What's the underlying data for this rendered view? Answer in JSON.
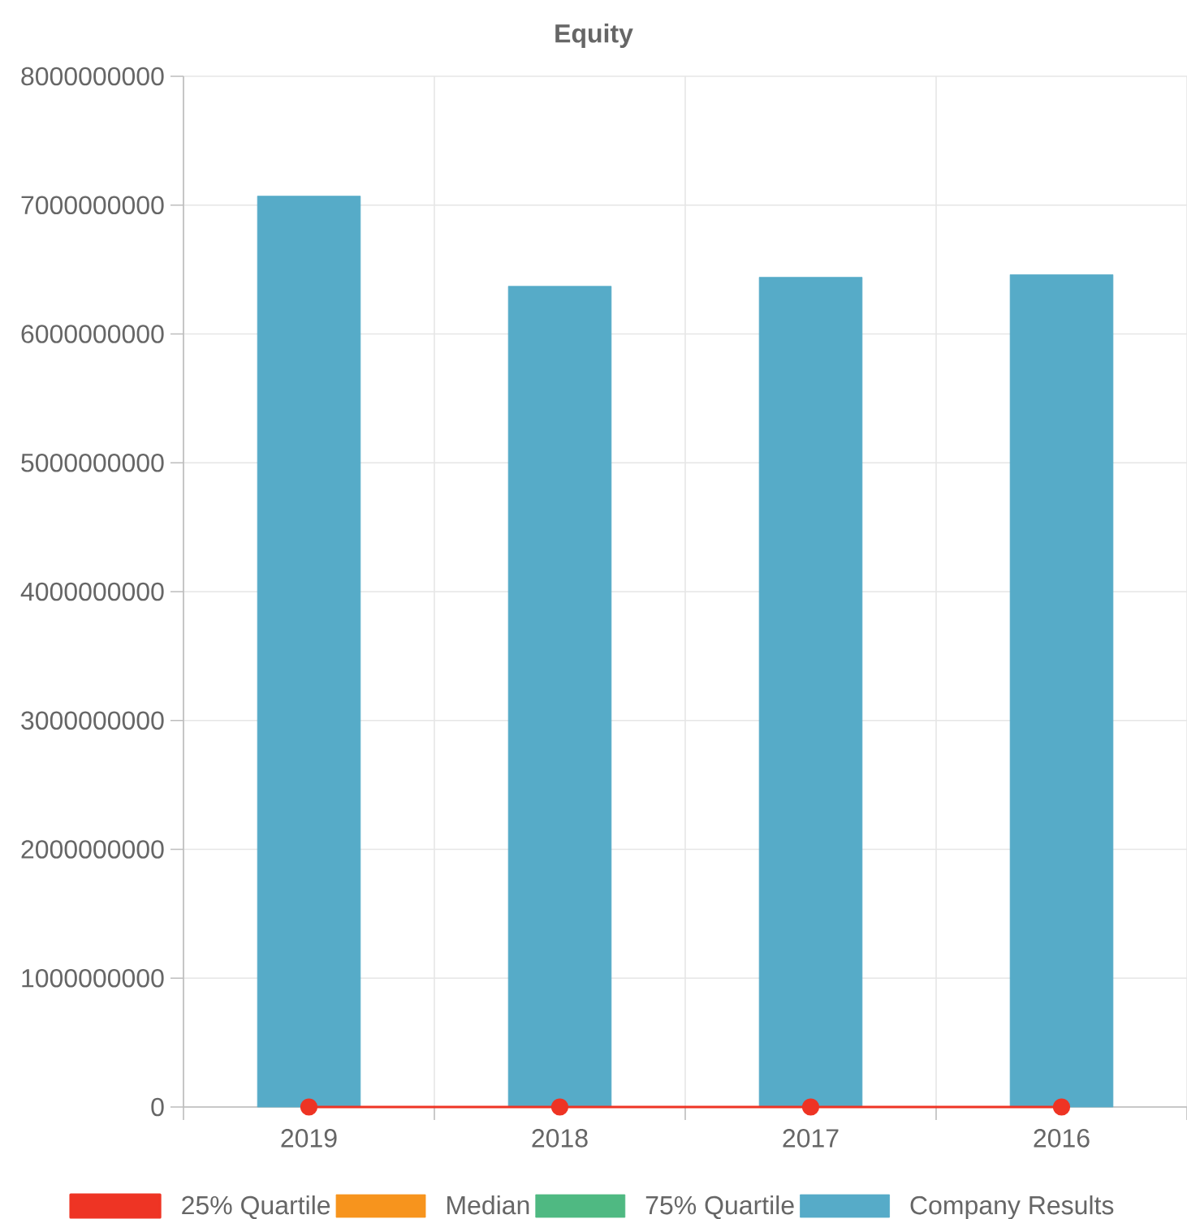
{
  "chart_data": {
    "type": "bar",
    "title": "Equity",
    "categories": [
      "2019",
      "2018",
      "2017",
      "2016"
    ],
    "series": [
      {
        "name": "25% Quartile",
        "type": "line",
        "color": "#ee3424",
        "values": [
          0,
          0,
          0,
          0
        ]
      },
      {
        "name": "Median",
        "type": "line",
        "color": "#f7941d",
        "values": [
          null,
          null,
          null,
          null
        ]
      },
      {
        "name": "75% Quartile",
        "type": "line",
        "color": "#4fb982",
        "values": [
          null,
          null,
          null,
          null
        ]
      },
      {
        "name": "Company Results",
        "color": "#56abc8",
        "values": [
          7070000000,
          6370000000,
          6440000000,
          6460000000
        ]
      }
    ],
    "ylim": [
      0,
      8000000000
    ],
    "yticks": [
      0,
      1000000000,
      2000000000,
      3000000000,
      4000000000,
      5000000000,
      6000000000,
      7000000000,
      8000000000
    ],
    "grid": true,
    "legend": "bottom",
    "marker": "circle"
  }
}
